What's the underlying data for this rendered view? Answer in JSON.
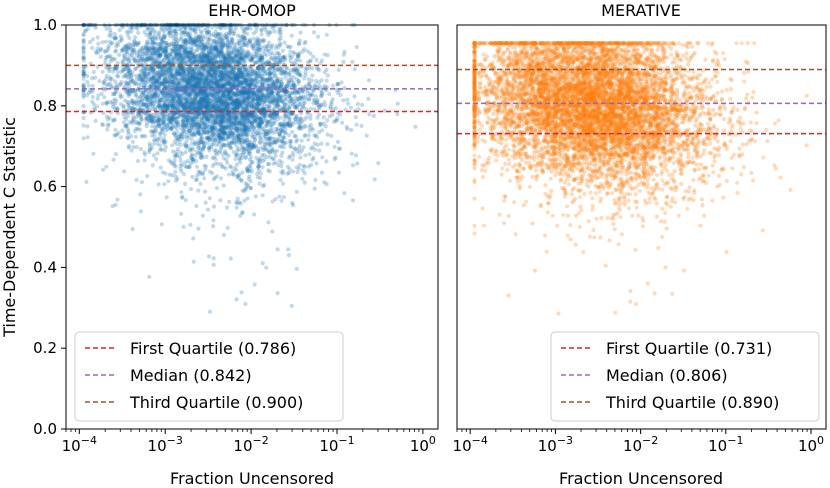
{
  "chart_data": [
    {
      "type": "scatter",
      "title": "EHR-OMOP",
      "xlabel": "Fraction Uncensored",
      "ylabel": "Time-Dependent C Statistic",
      "xscale": "log",
      "xlim": [
        7e-05,
        1.5
      ],
      "ylim": [
        0.0,
        1.0
      ],
      "x_ticks": [
        "10^-4",
        "10^-3",
        "10^-2",
        "10^-1",
        "10^0"
      ],
      "y_ticks": [
        "0.0",
        "0.2",
        "0.4",
        "0.6",
        "0.8",
        "1.0"
      ],
      "color": "#1f77b4",
      "n_points": 6000,
      "point_cloud": {
        "x_log10_mean": -2.45,
        "x_log10_sd": 0.62,
        "y_mean": 0.842,
        "y_sd": 0.085
      },
      "reference_lines": [
        {
          "label": "First Quartile (0.786)",
          "value": 0.786,
          "color": "#d62728"
        },
        {
          "label": "Median (0.842)",
          "value": 0.842,
          "color": "#9467bd"
        },
        {
          "label": "Third Quartile (0.900)",
          "value": 0.9,
          "color": "#a0522d"
        }
      ],
      "legend_position": "lower-left"
    },
    {
      "type": "scatter",
      "title": "MERATIVE",
      "xlabel": "Fraction Uncensored",
      "ylabel": "",
      "xscale": "log",
      "xlim": [
        7e-05,
        1.5
      ],
      "ylim": [
        0.0,
        1.0
      ],
      "x_ticks": [
        "10^-4",
        "10^-3",
        "10^-2",
        "10^-1",
        "10^0"
      ],
      "y_ticks": [],
      "color": "#ff7f0e",
      "n_points": 7000,
      "point_cloud": {
        "x_log10_mean": -2.6,
        "x_log10_sd": 0.7,
        "y_mean": 0.806,
        "y_sd": 0.095
      },
      "reference_lines": [
        {
          "label": "First Quartile (0.731)",
          "value": 0.731,
          "color": "#d62728"
        },
        {
          "label": "Median (0.806)",
          "value": 0.806,
          "color": "#9467bd"
        },
        {
          "label": "Third Quartile (0.890)",
          "value": 0.89,
          "color": "#a0522d"
        }
      ],
      "legend_position": "lower-right"
    }
  ]
}
